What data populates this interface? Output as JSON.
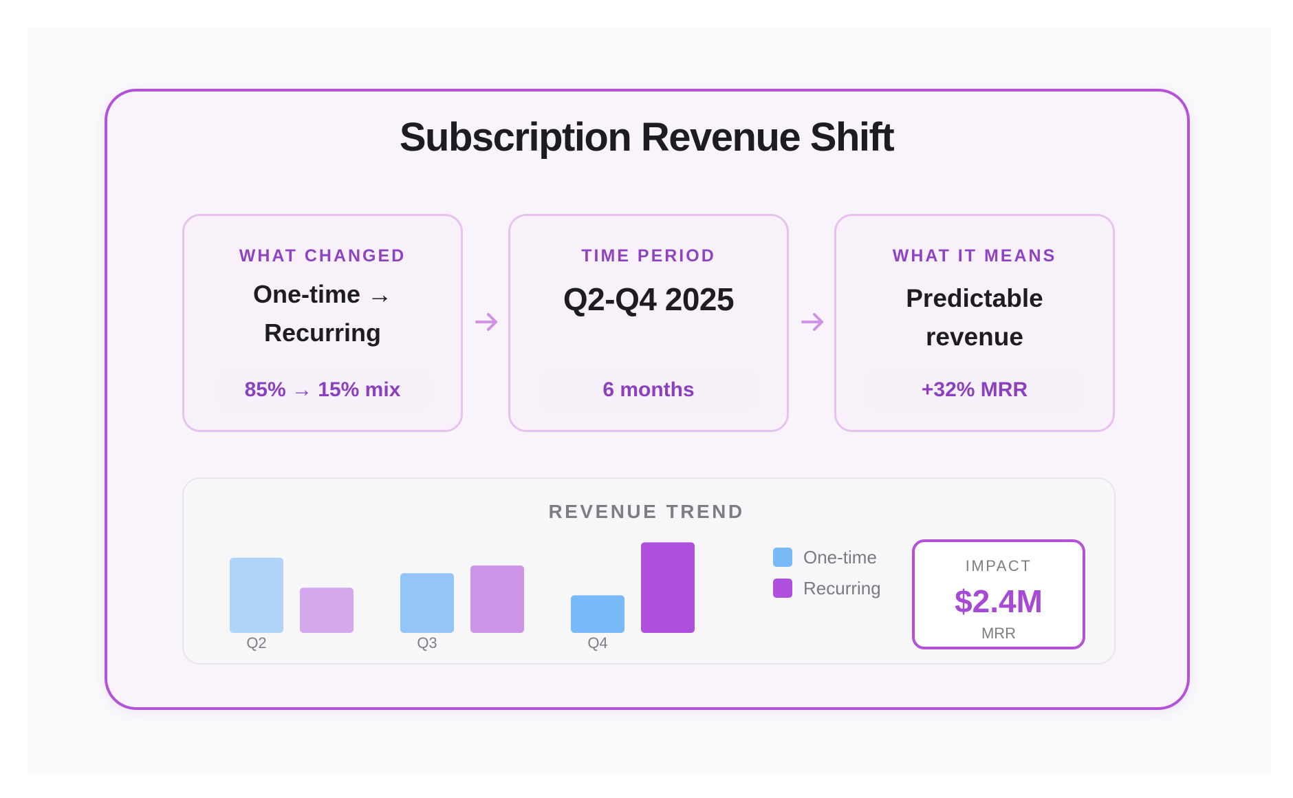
{
  "title": "Subscription Revenue Shift",
  "cards": [
    {
      "eyebrow": "WHAT CHANGED",
      "main": [
        "One-time →",
        "Recurring"
      ],
      "pill": "85% → 15% mix"
    },
    {
      "eyebrow": "TIME PERIOD",
      "main": [
        "Q2-Q4 2025"
      ],
      "pill": "6 months"
    },
    {
      "eyebrow": "WHAT IT MEANS",
      "main": [
        "Predictable",
        "revenue"
      ],
      "pill": "+32% MRR"
    }
  ],
  "impact": {
    "label": "IMPACT",
    "value": "$2.4M",
    "unit": "MRR"
  },
  "colors": {
    "accent": "#b352d9",
    "eyebrow": "#8e44c0",
    "one_time": [
      "#afd4f8",
      "#94c5f7",
      "#7ab9f8"
    ],
    "recurring": [
      "#d5a7ec",
      "#cd95e8",
      "#ae50dd"
    ],
    "legend_one_time": "#7ab9f8",
    "legend_recurring": "#ae50dd"
  },
  "chart_data": {
    "type": "bar",
    "title": "REVENUE TREND",
    "categories": [
      "Q2",
      "Q3",
      "Q4"
    ],
    "series": [
      {
        "name": "One-time",
        "values": [
          78,
          62,
          39
        ]
      },
      {
        "name": "Recurring",
        "values": [
          47,
          70,
          94
        ]
      }
    ],
    "ylim": [
      0,
      100
    ],
    "grid": false,
    "legend": "right",
    "xlabel": "",
    "ylabel": ""
  }
}
